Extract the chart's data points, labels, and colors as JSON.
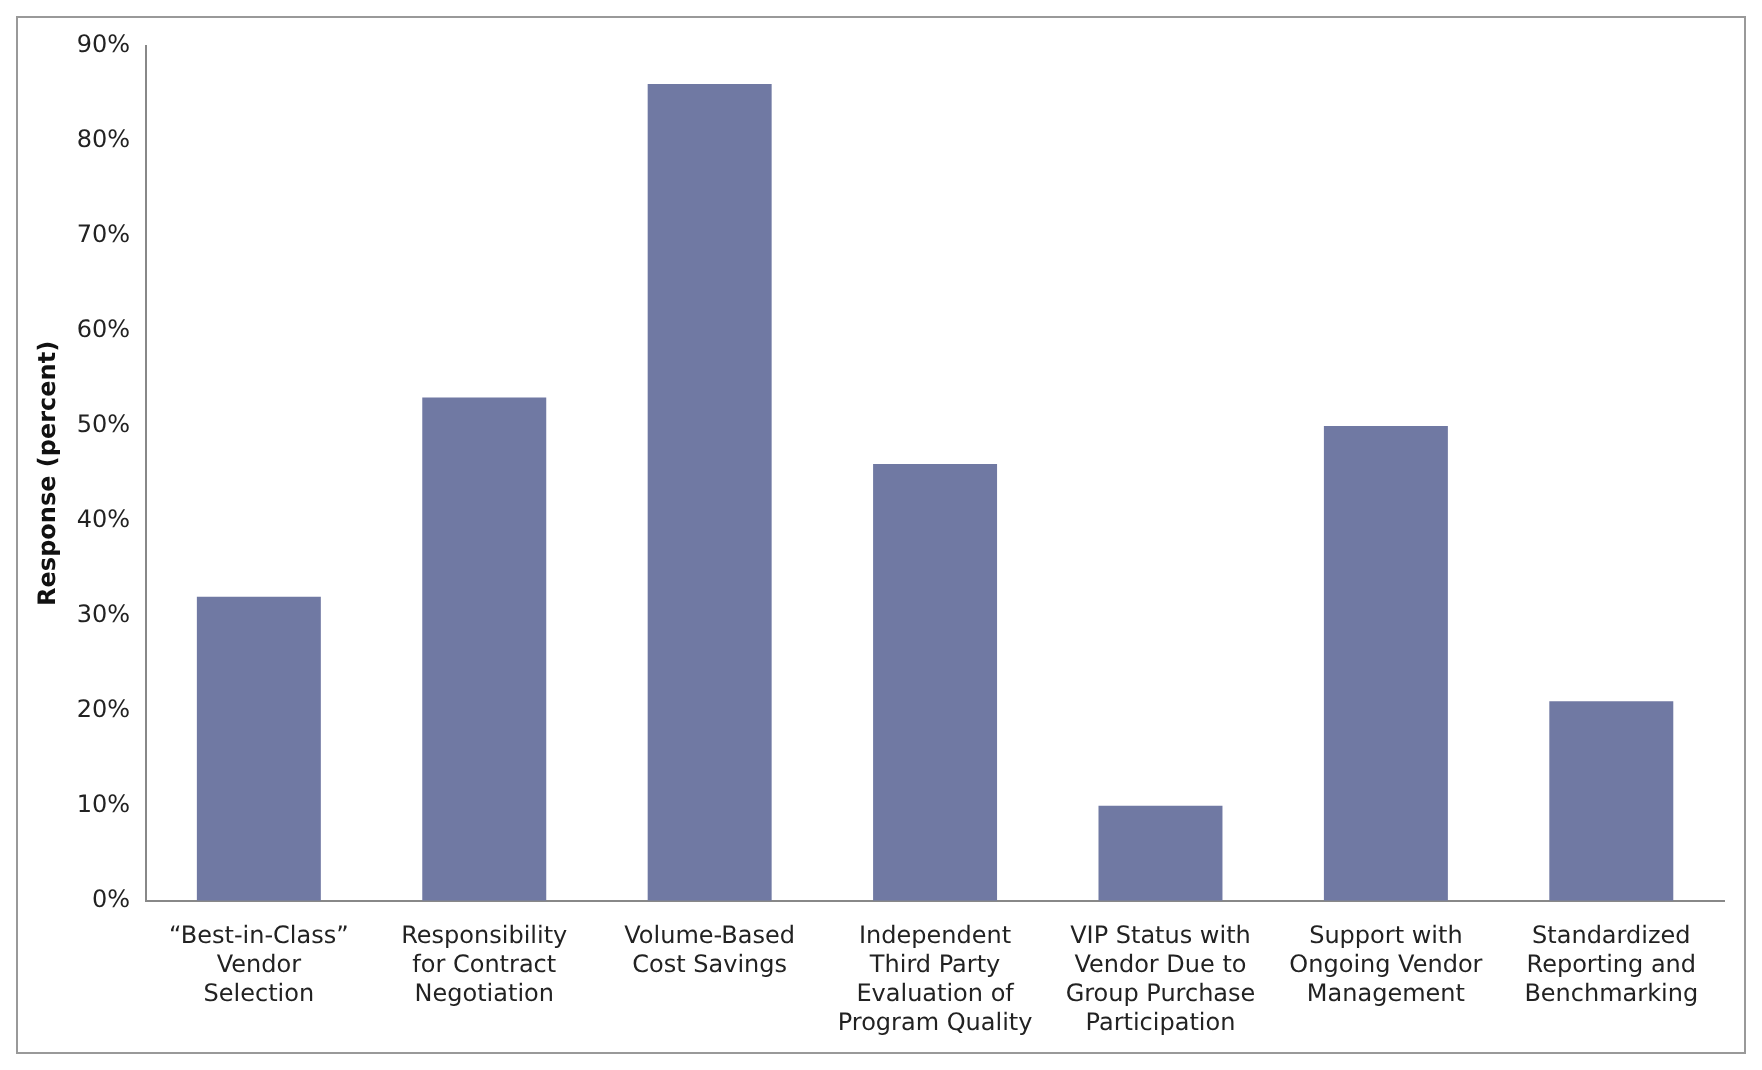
{
  "chart_data": {
    "type": "bar",
    "ylabel": "Response (percent)",
    "categories": [
      "“Best-in-Class” Vendor Selection",
      "Responsibility for Contract Negotiation",
      "Volume-Based Cost Savings",
      "Independent Third Party Evaluation of Program Quality",
      "VIP Status with Vendor Due to Group Purchase Participation",
      "Support with Ongoing Vendor Management",
      "Standardized Reporting and Benchmarking"
    ],
    "values": [
      32,
      53,
      86,
      46,
      10,
      50,
      21
    ],
    "color": "#7079a3",
    "ylim": [
      0,
      90
    ],
    "yticks": [
      {
        "value": 0,
        "label": "0%"
      },
      {
        "value": 10,
        "label": "10%"
      },
      {
        "value": 20,
        "label": "20%"
      },
      {
        "value": 30,
        "label": "30%"
      },
      {
        "value": 40,
        "label": "40%"
      },
      {
        "value": 50,
        "label": "50%"
      },
      {
        "value": 60,
        "label": "60%"
      },
      {
        "value": 70,
        "label": "70%"
      },
      {
        "value": 80,
        "label": "80%"
      },
      {
        "value": 90,
        "label": "90%"
      }
    ],
    "grid": false,
    "legend": false
  }
}
